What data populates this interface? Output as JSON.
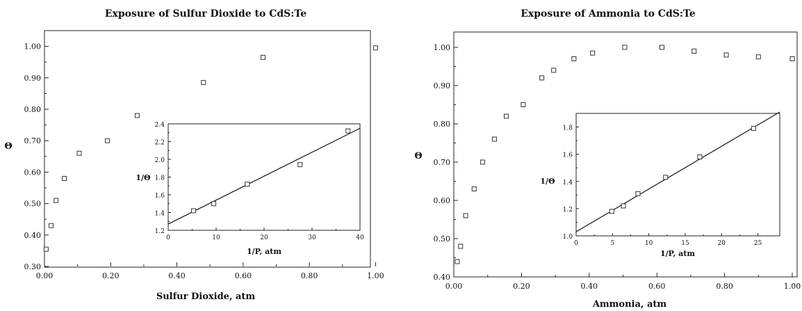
{
  "chart_data": [
    {
      "id": "left",
      "type": "scatter",
      "title": "Exposure of Sulfur Dioxide to CdS:Te",
      "xlabel": "Sulfur Dioxide, atm",
      "ylabel": "Θ",
      "xlim": [
        0,
        1.05
      ],
      "ylim": [
        0.3,
        1.05
      ],
      "xticks": [
        "0.00",
        "0.20",
        "0.40",
        "0.60",
        "0.80",
        "1.00"
      ],
      "yticks": [
        "0.30",
        "0.40",
        "0.50",
        "0.60",
        "0.70",
        "0.80",
        "0.90",
        "1.00"
      ],
      "x": [
        0.005,
        0.02,
        0.035,
        0.06,
        0.105,
        0.19,
        0.28,
        0.48,
        0.66,
        1.0
      ],
      "y": [
        0.355,
        0.43,
        0.51,
        0.58,
        0.66,
        0.7,
        0.78,
        0.885,
        0.965,
        0.995
      ],
      "inset": {
        "type": "scatter",
        "xlabel": "1/P, atm",
        "ylabel": "1/Θ",
        "xlim": [
          0,
          40
        ],
        "ylim": [
          1.2,
          2.4
        ],
        "xticks": [
          "0",
          "10",
          "20",
          "30",
          "40"
        ],
        "yticks": [
          "1.2",
          "1.4",
          "1.6",
          "1.8",
          "2.0",
          "2.2",
          "2.4"
        ],
        "x": [
          5.3,
          9.5,
          16.5,
          27.5,
          37.5
        ],
        "y": [
          1.42,
          1.5,
          1.72,
          1.94,
          2.32
        ],
        "fit": {
          "x": [
            0,
            40
          ],
          "y": [
            1.27,
            2.35
          ]
        }
      }
    },
    {
      "id": "right",
      "type": "scatter",
      "title": "Exposure of Ammonia to CdS:Te",
      "xlabel": "Ammonia, atm",
      "ylabel": "Θ",
      "xlim": [
        0,
        1.0
      ],
      "ylim": [
        0.4,
        1.04
      ],
      "xticks": [
        "0.00",
        "0.20",
        "0.40",
        "0.60",
        "0.80",
        "1.00"
      ],
      "yticks": [
        "0.40",
        "0.50",
        "0.60",
        "0.70",
        "0.80",
        "0.90",
        "1.00"
      ],
      "x": [
        0.01,
        0.02,
        0.035,
        0.06,
        0.085,
        0.12,
        0.155,
        0.205,
        0.26,
        0.295,
        0.355,
        0.41,
        0.505,
        0.615,
        0.71,
        0.805,
        0.9,
        1.0
      ],
      "y": [
        0.44,
        0.48,
        0.56,
        0.63,
        0.7,
        0.76,
        0.82,
        0.85,
        0.92,
        0.94,
        0.97,
        0.985,
        1.0,
        1.0,
        0.99,
        0.98,
        0.975,
        0.97
      ],
      "inset": {
        "type": "scatter",
        "xlabel": "1/P, atm",
        "ylabel": "1/Θ",
        "xlim": [
          0,
          28
        ],
        "ylim": [
          1.0,
          1.9
        ],
        "xticks": [
          "0",
          "5",
          "10",
          "15",
          "20",
          "25"
        ],
        "yticks": [
          "1.0",
          "1.2",
          "1.4",
          "1.6",
          "1.8"
        ],
        "x": [
          4.9,
          6.5,
          8.5,
          12.3,
          17.0,
          24.4
        ],
        "y": [
          1.18,
          1.22,
          1.31,
          1.43,
          1.58,
          1.79
        ],
        "fit": {
          "x": [
            0,
            28
          ],
          "y": [
            1.03,
            1.91
          ]
        }
      }
    }
  ]
}
